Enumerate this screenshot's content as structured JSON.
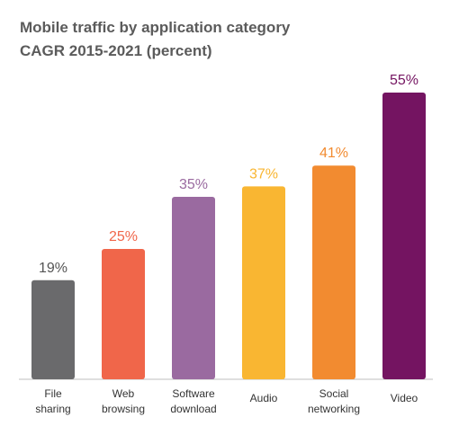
{
  "chart_data": {
    "type": "bar",
    "title": "Mobile traffic by application category",
    "subtitle": "CAGR 2015-2021 (percent)",
    "categories": [
      [
        "File",
        "sharing"
      ],
      [
        "Web",
        "browsing"
      ],
      [
        "Software",
        "download"
      ],
      [
        "Audio"
      ],
      [
        "Social",
        "networking"
      ],
      [
        "Video"
      ]
    ],
    "values": [
      19,
      25,
      35,
      37,
      41,
      55
    ],
    "value_labels": [
      "19%",
      "25%",
      "35%",
      "37%",
      "41%",
      "55%"
    ],
    "colors": [
      "#6a6a6c",
      "#f0664a",
      "#9a6aa0",
      "#f9b632",
      "#f28b30",
      "#741461"
    ],
    "label_colors": [
      "#555555",
      "#f0664a",
      "#9a6aa0",
      "#f9b632",
      "#f28b30",
      "#741461"
    ],
    "ylim": [
      0,
      55
    ],
    "grid": false,
    "legend": "none"
  }
}
